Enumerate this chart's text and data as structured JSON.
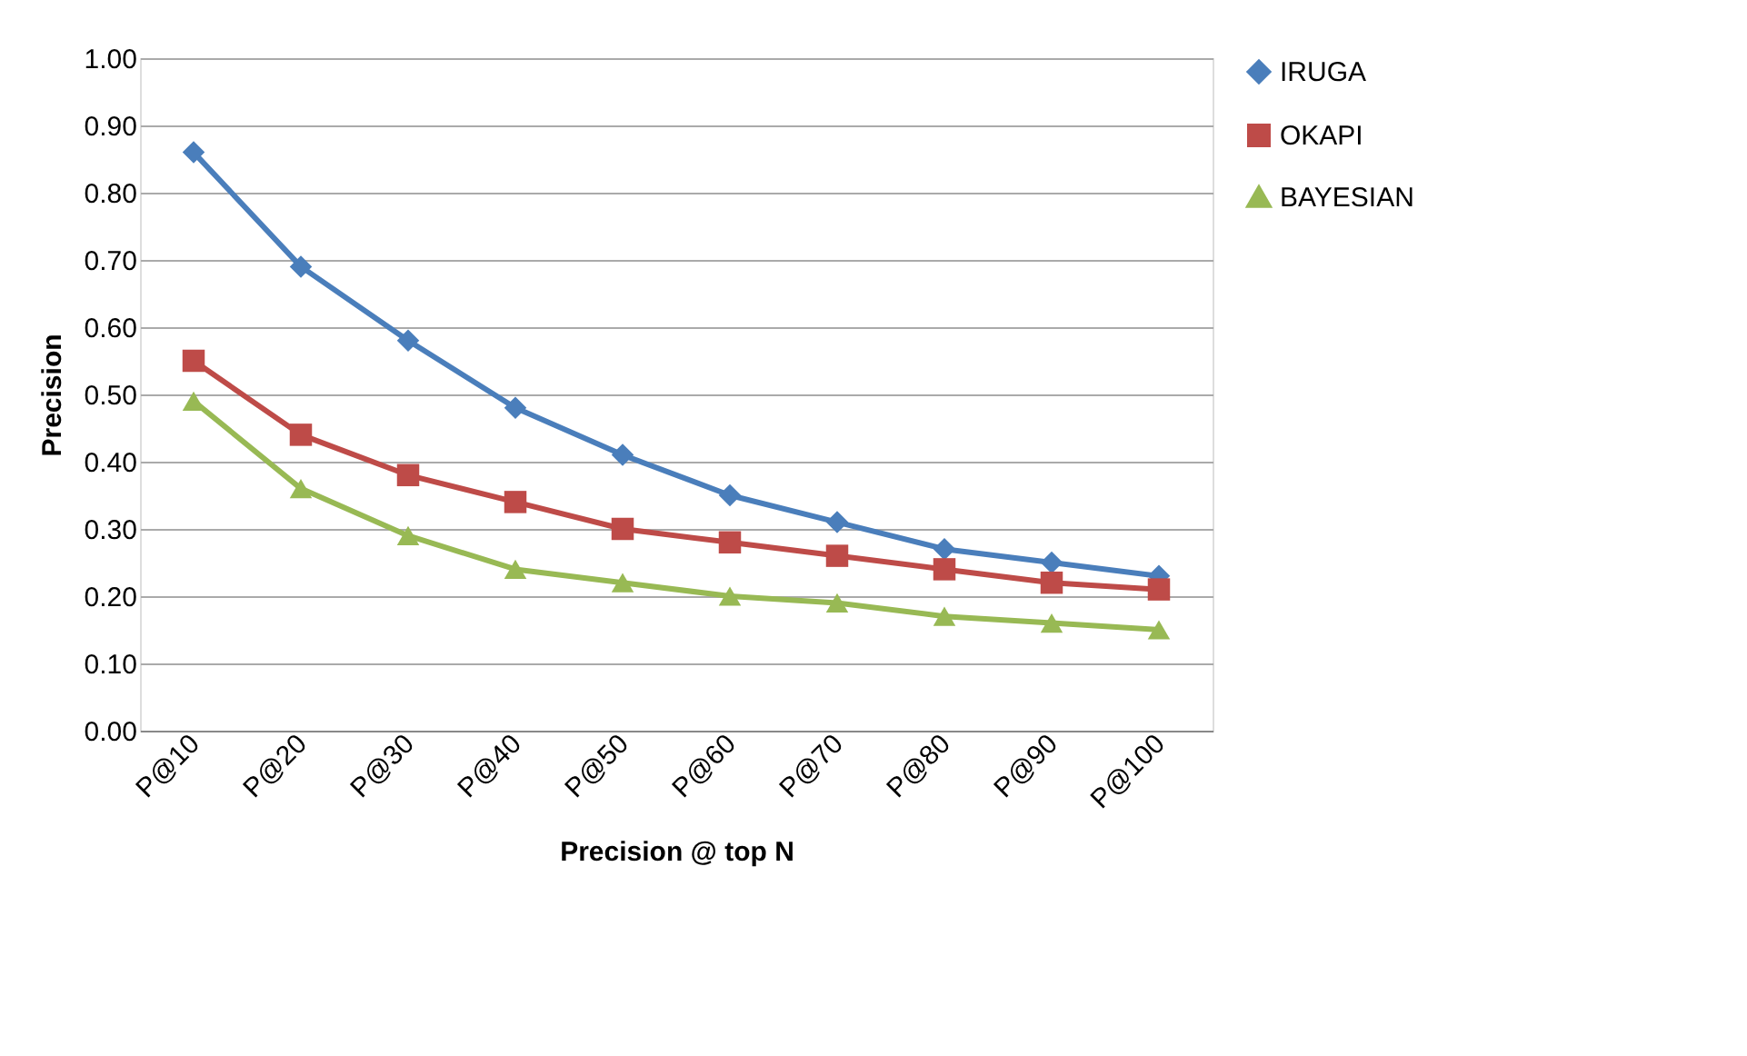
{
  "chart_data": {
    "type": "line",
    "xlabel": "Precision @ top N",
    "ylabel": "Precision",
    "categories": [
      "P@10",
      "P@20",
      "P@30",
      "P@40",
      "P@50",
      "P@60",
      "P@70",
      "P@80",
      "P@90",
      "P@100"
    ],
    "series": [
      {
        "name": "IRUGA",
        "color": "#4a7ebb",
        "marker": "diamond",
        "values": [
          0.86,
          0.69,
          0.58,
          0.48,
          0.41,
          0.35,
          0.31,
          0.27,
          0.25,
          0.23
        ]
      },
      {
        "name": "OKAPI",
        "color": "#be4b48",
        "marker": "square",
        "values": [
          0.55,
          0.44,
          0.38,
          0.34,
          0.3,
          0.28,
          0.26,
          0.24,
          0.22,
          0.21
        ]
      },
      {
        "name": "BAYESIAN",
        "color": "#98b954",
        "marker": "triangle",
        "values": [
          0.49,
          0.36,
          0.29,
          0.24,
          0.22,
          0.2,
          0.19,
          0.17,
          0.16,
          0.15
        ]
      }
    ],
    "ylim": [
      0,
      1
    ],
    "yticks": [
      {
        "value": 0,
        "label": "0.00"
      },
      {
        "value": 0.1,
        "label": "0.10"
      },
      {
        "value": 0.2,
        "label": "0.20"
      },
      {
        "value": 0.3,
        "label": "0.30"
      },
      {
        "value": 0.4,
        "label": "0.40"
      },
      {
        "value": 0.5,
        "label": "0.50"
      },
      {
        "value": 0.6,
        "label": "0.60"
      },
      {
        "value": 0.7,
        "label": "0.70"
      },
      {
        "value": 0.8,
        "label": "0.80"
      },
      {
        "value": 0.9,
        "label": "0.90"
      },
      {
        "value": 1,
        "label": "1.00"
      }
    ],
    "grid": "y",
    "legend": "right",
    "line_style": "solid"
  }
}
